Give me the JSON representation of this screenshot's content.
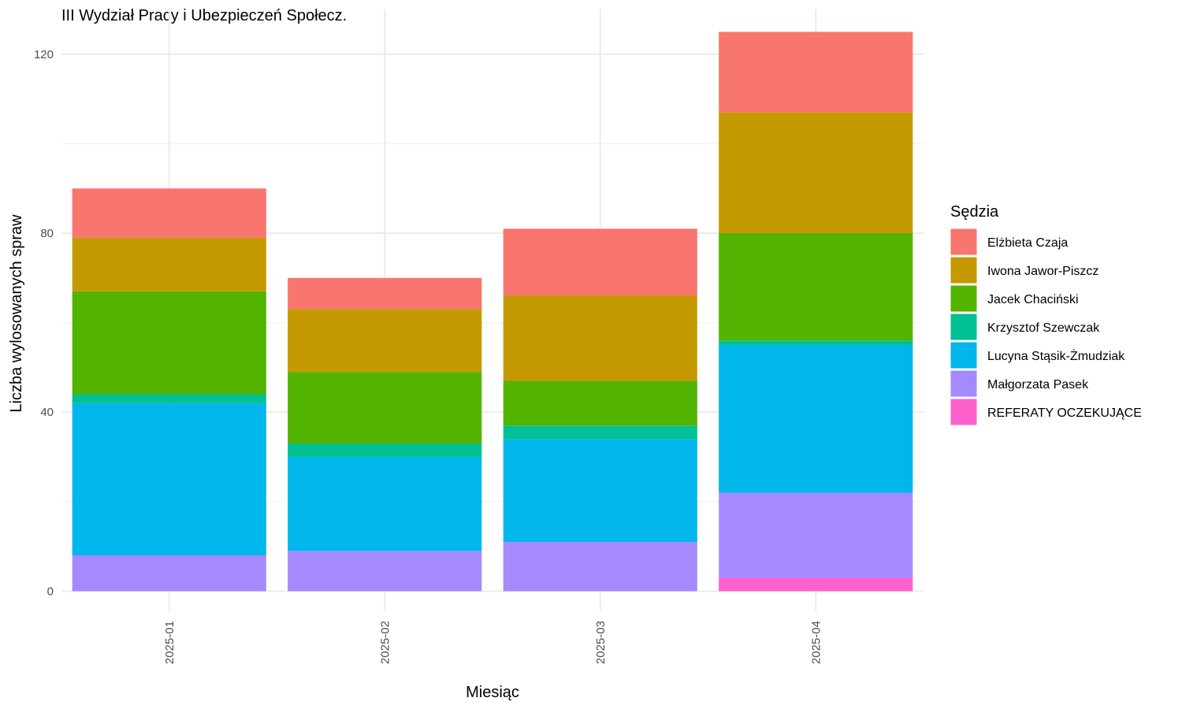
{
  "chart_data": {
    "type": "bar",
    "stacked": true,
    "title": "III Wydział Pracy i Ubezpieczeń Społecz.",
    "xlabel": "Miesiąc",
    "ylabel": "Liczba wylosowanych spraw",
    "ylim": [
      -4.5,
      130
    ],
    "yticks": [
      0,
      40,
      80,
      120
    ],
    "grid": true,
    "legend_title": "Sędzia",
    "legend_position": "right",
    "categories": [
      "2025-01",
      "2025-02",
      "2025-03",
      "2025-04"
    ],
    "series": [
      {
        "name": "REFERATY OCZEKUJĄCE",
        "color": "#FF61CC",
        "values": [
          0,
          0,
          0,
          3
        ]
      },
      {
        "name": "Małgorzata Pasek",
        "color": "#A58AFF",
        "values": [
          8,
          9,
          11,
          19
        ]
      },
      {
        "name": "Lucyna Stąsik-Żmudziak",
        "color": "#00B6EB",
        "values": [
          34,
          21,
          23,
          33
        ]
      },
      {
        "name": "Krzysztof Szewczak",
        "color": "#00C094",
        "values": [
          2,
          3,
          3,
          1
        ]
      },
      {
        "name": "Jacek Chaciński",
        "color": "#53B400",
        "values": [
          23,
          16,
          10,
          24
        ]
      },
      {
        "name": "Iwona Jawor-Piszcz",
        "color": "#C49A00",
        "values": [
          12,
          14,
          19,
          27
        ]
      },
      {
        "name": "Elżbieta Czaja",
        "color": "#F8766D",
        "values": [
          11,
          7,
          15,
          18
        ]
      }
    ]
  }
}
